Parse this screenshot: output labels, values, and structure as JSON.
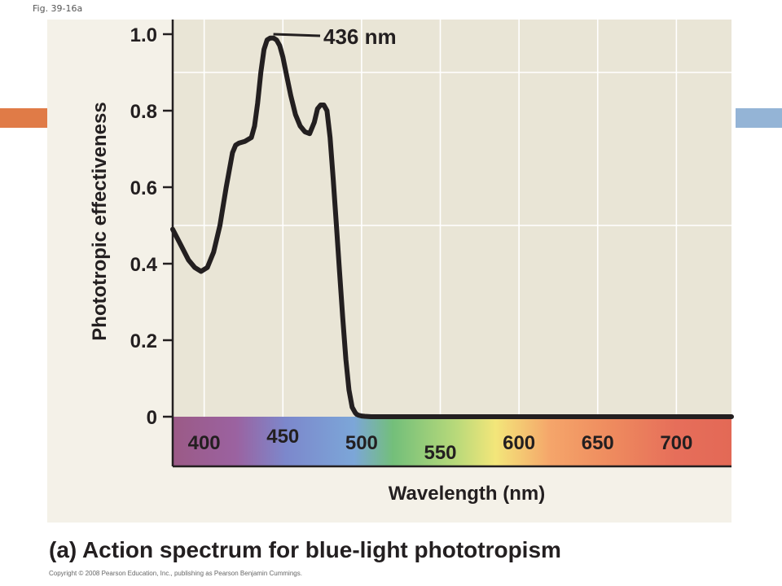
{
  "figure_label": "Fig. 39-16a",
  "caption": "(a) Action spectrum for blue-light phototropism",
  "copyright": "Copyright © 2008 Pearson Education, Inc., publishing as Pearson Benjamin Cummings.",
  "colors": {
    "deco_left": "#e07b47",
    "deco_right": "#94b4d6",
    "panel_bg": "#f4f1e8",
    "plot_bg": "#e9e5d6",
    "curve": "#231f20",
    "grid": "#ffffff"
  },
  "chart_data": {
    "type": "line",
    "xlabel": "Wavelength (nm)",
    "ylabel": "Phototropic effectiveness",
    "xlim": [
      380,
      735
    ],
    "ylim": [
      0,
      1.0
    ],
    "x_ticks": [
      400,
      450,
      500,
      550,
      600,
      650,
      700
    ],
    "y_ticks": [
      0,
      0.2,
      0.4,
      0.6,
      0.8,
      1.0
    ],
    "y_tick_labels": [
      "0",
      "0.2",
      "0.4",
      "0.6",
      "0.8",
      "1.0"
    ],
    "grid": true,
    "annotation": {
      "text": "436 nm",
      "x": 445,
      "y": 1.0
    },
    "spectrum_band": [
      {
        "nm": 380,
        "color": "#9b5a86"
      },
      {
        "nm": 420,
        "color": "#9b62a0"
      },
      {
        "nm": 452,
        "color": "#7c88cc"
      },
      {
        "nm": 495,
        "color": "#7ca6d8"
      },
      {
        "nm": 520,
        "color": "#73bf7a"
      },
      {
        "nm": 560,
        "color": "#b8d97a"
      },
      {
        "nm": 585,
        "color": "#f3e67a"
      },
      {
        "nm": 620,
        "color": "#f5a56a"
      },
      {
        "nm": 660,
        "color": "#ee8a5e"
      },
      {
        "nm": 700,
        "color": "#e66e5a"
      },
      {
        "nm": 735,
        "color": "#e36956"
      }
    ],
    "series": [
      {
        "x": [
          380,
          385,
          390,
          394,
          398,
          402,
          406,
          410,
          414,
          418,
          420,
          422,
          426,
          430,
          432,
          434,
          436,
          438,
          440,
          442,
          444,
          446,
          448,
          450,
          452,
          455,
          458,
          461,
          464,
          467,
          470,
          472,
          474,
          476,
          478,
          480,
          482,
          484,
          486,
          488,
          490,
          492,
          494,
          496,
          497,
          498,
          499,
          500,
          502,
          506,
          512,
          520,
          540,
          560,
          600,
          650,
          700,
          735
        ],
        "y": [
          0.49,
          0.45,
          0.41,
          0.39,
          0.38,
          0.39,
          0.43,
          0.5,
          0.6,
          0.69,
          0.71,
          0.715,
          0.72,
          0.73,
          0.76,
          0.82,
          0.9,
          0.96,
          0.985,
          0.99,
          0.99,
          0.985,
          0.97,
          0.94,
          0.9,
          0.84,
          0.79,
          0.76,
          0.745,
          0.74,
          0.77,
          0.805,
          0.815,
          0.815,
          0.8,
          0.73,
          0.62,
          0.5,
          0.38,
          0.26,
          0.15,
          0.07,
          0.025,
          0.01,
          0.006,
          0.004,
          0.003,
          0.002,
          0.001,
          0,
          0,
          0,
          0,
          0,
          0,
          0,
          0,
          0
        ]
      }
    ]
  }
}
